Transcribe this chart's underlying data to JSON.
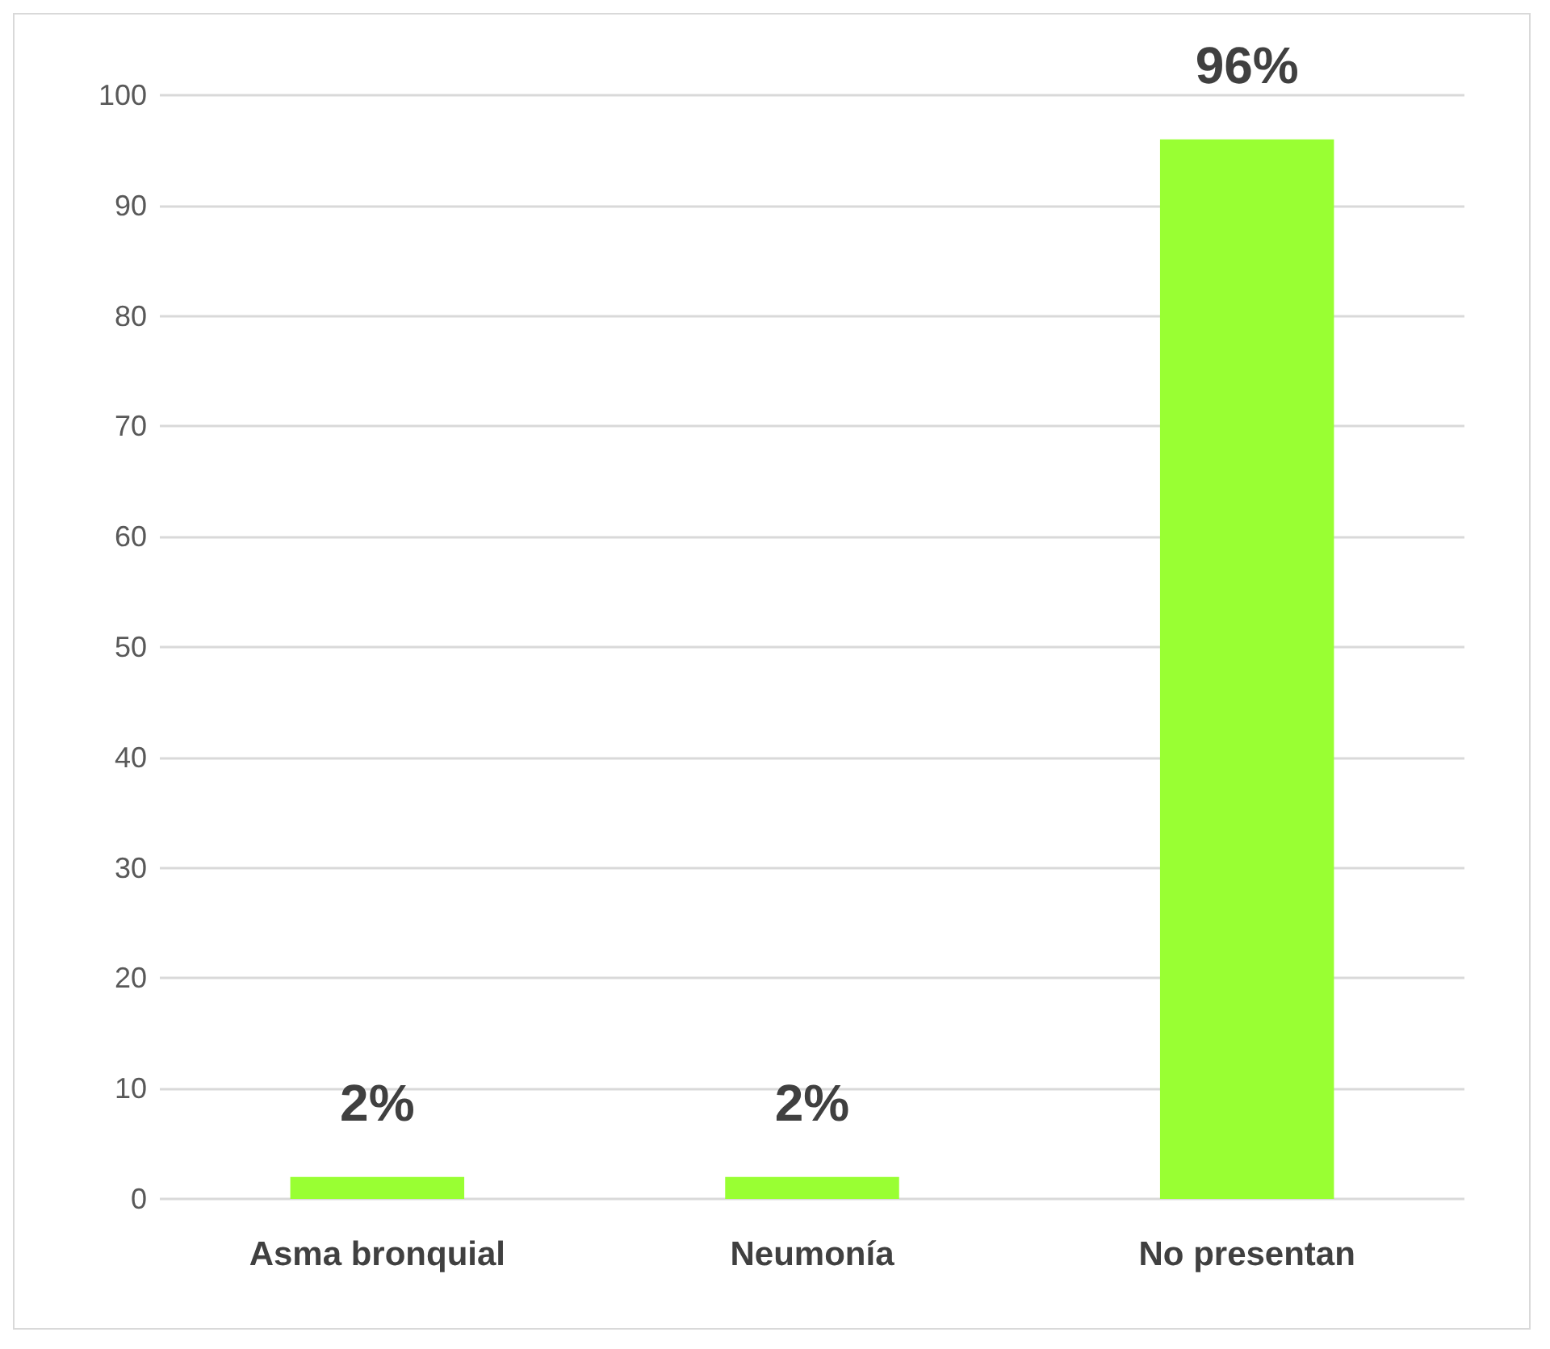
{
  "chart_data": {
    "type": "bar",
    "categories": [
      "Asma bronquial",
      "Neumonía",
      "No presentan"
    ],
    "values": [
      2,
      2,
      96
    ],
    "value_labels": [
      "2%",
      "2%",
      "96%"
    ],
    "color": "#99ff33",
    "ylim": [
      0,
      100
    ],
    "yticks": [
      0,
      10,
      20,
      30,
      40,
      50,
      60,
      70,
      80,
      90,
      100
    ],
    "grid": "y"
  }
}
